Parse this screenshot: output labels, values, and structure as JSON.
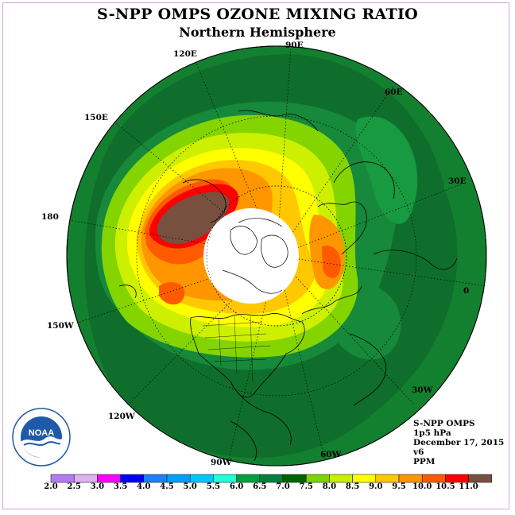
{
  "title": "S-NPP OMPS OZONE MIXING RATIO",
  "subtitle": "Northern Hemisphere",
  "longitude_labels": [
    "90E",
    "60E",
    "30E",
    "0",
    "30W",
    "60W",
    "90W",
    "120W",
    "150W",
    "180",
    "150E",
    "120E"
  ],
  "info": {
    "instrument": "S-NPP OMPS",
    "pressure": "1p5 hPa",
    "date": "December 17, 2015",
    "version": "v6",
    "units": "PPM"
  },
  "logo": {
    "text": "NOAA",
    "ring_text": "NATIONAL OCEANIC AND ATMOSPHERIC ADMINISTRATION · U.S. DEPARTMENT OF COMMERCE"
  },
  "colorbar": {
    "ticks": [
      "2.0",
      "2.5",
      "3.0",
      "3.5",
      "4.0",
      "4.5",
      "5.0",
      "5.5",
      "6.0",
      "6.5",
      "7.0",
      "7.5",
      "8.0",
      "8.5",
      "9.0",
      "9.5",
      "10.0",
      "10.5",
      "11.0"
    ],
    "colors": [
      "#b47cf2",
      "#dcb2f0",
      "#ff00ff",
      "#0000ff",
      "#1e80ff",
      "#00a0ff",
      "#00c8ff",
      "#20ffd8",
      "#00a040",
      "#008040",
      "#006400",
      "#7fd400",
      "#c8f000",
      "#ffff00",
      "#ffc800",
      "#ff9600",
      "#ff5a00",
      "#ff0000",
      "#785040"
    ]
  },
  "colors": {
    "map_outer": "#1a7a32",
    "ocean_dark": "#126828"
  }
}
